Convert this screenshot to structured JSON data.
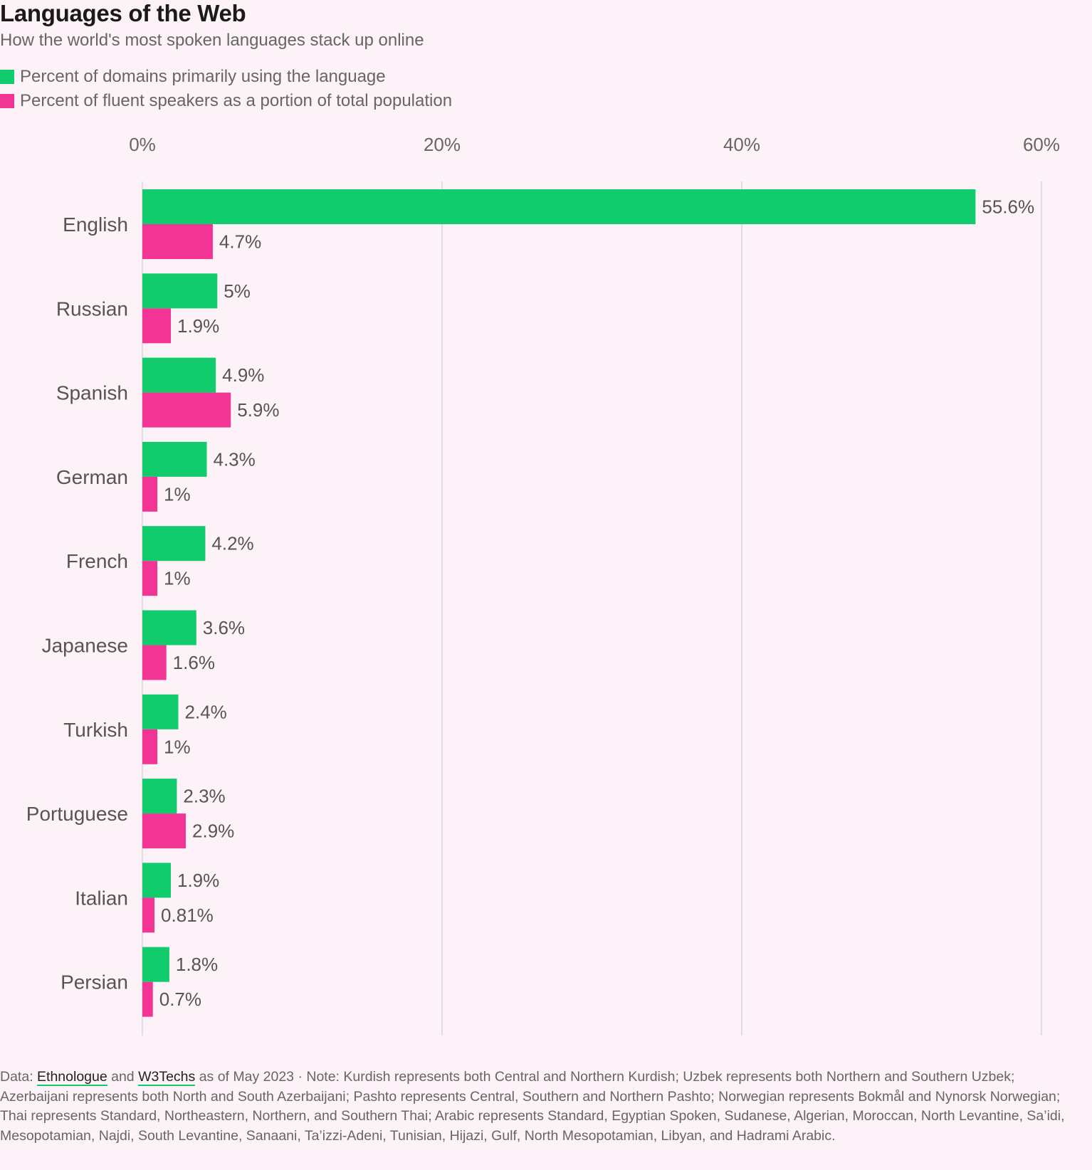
{
  "chart_data": {
    "type": "bar",
    "orientation": "horizontal",
    "title": "Languages of the Web",
    "subtitle": "How the world's most spoken languages stack up online",
    "categories": [
      "English",
      "Russian",
      "Spanish",
      "German",
      "French",
      "Japanese",
      "Turkish",
      "Portuguese",
      "Italian",
      "Persian"
    ],
    "series": [
      {
        "name": "Percent of domains primarily using the language",
        "color": "#10cc6c",
        "values": [
          55.6,
          5,
          4.9,
          4.3,
          4.2,
          3.6,
          2.4,
          2.3,
          1.9,
          1.8
        ],
        "labels": [
          "55.6%",
          "5%",
          "4.9%",
          "4.3%",
          "4.2%",
          "3.6%",
          "2.4%",
          "2.3%",
          "1.9%",
          "1.8%"
        ]
      },
      {
        "name": "Percent of fluent speakers as a portion of total population",
        "color": "#f23595",
        "values": [
          4.7,
          1.9,
          5.9,
          1,
          1,
          1.6,
          1,
          2.9,
          0.81,
          0.7
        ],
        "labels": [
          "4.7%",
          "1.9%",
          "5.9%",
          "1%",
          "1%",
          "1.6%",
          "1%",
          "2.9%",
          "0.81%",
          "0.7%"
        ]
      }
    ],
    "xlim": [
      0,
      60
    ],
    "xticks": [
      0,
      20,
      40,
      60
    ],
    "xtick_labels": [
      "0%",
      "20%",
      "40%",
      "60%"
    ],
    "xaxis_position": "top",
    "grid": true,
    "legend_placement": "top-left"
  },
  "footer": {
    "prefix": "Data: ",
    "link1": "Ethnologue",
    "mid": " and ",
    "link2": "W3Techs",
    "note": " as of May 2023 · Note: Kurdish represents both Central and Northern Kurdish; Uzbek represents both Northern and Southern Uzbek; Azerbaijani represents both North and South Azerbaijani; Pashto represents Central, Southern and Northern Pashto; Norwegian represents Bokmål and Nynorsk Norwegian; Thai represents Standard, Northeastern, Northern, and Southern Thai; Arabic represents Standard, Egyptian Spoken, Sudanese, Algerian, Moroccan, North Levantine, Sa’idi, Mesopotamian, Najdi, South Levantine, Sanaani, Ta’izzi-Adeni, Tunisian, Hijazi, Gulf, North Mesopotamian, Libyan, and Hadrami Arabic."
  }
}
